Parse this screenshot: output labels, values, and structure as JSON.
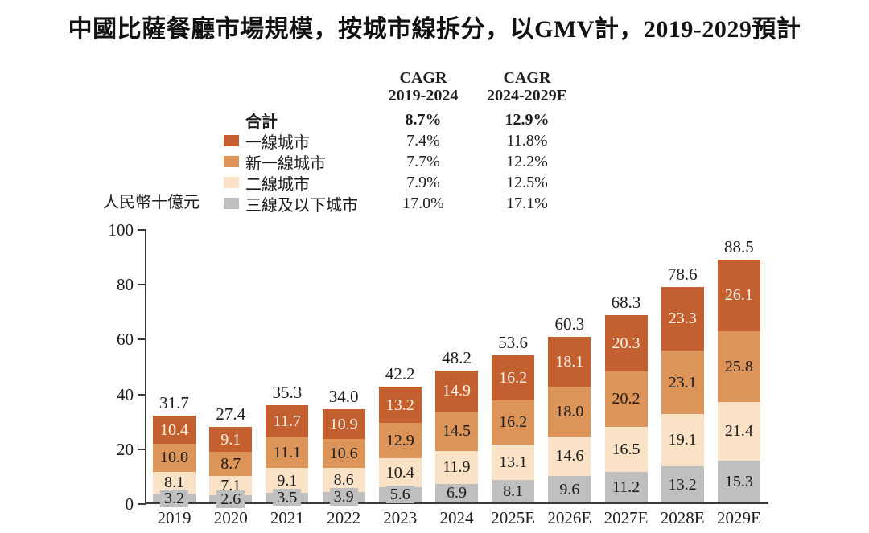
{
  "legend": {
    "columns": [
      {
        "line1": "CAGR",
        "line2": "2019-2024"
      },
      {
        "line1": "CAGR",
        "line2": "2024-2029E"
      }
    ],
    "rows": [
      {
        "label": "合計",
        "values": [
          "8.7%",
          "12.9%"
        ],
        "bold": true,
        "color": null
      },
      {
        "label": "一線城市",
        "values": [
          "7.4%",
          "11.8%"
        ],
        "bold": false,
        "color": "#C4602F"
      },
      {
        "label": "新一線城市",
        "values": [
          "7.7%",
          "12.2%"
        ],
        "bold": false,
        "color": "#DD9458"
      },
      {
        "label": "二線城市",
        "values": [
          "7.9%",
          "12.5%"
        ],
        "bold": false,
        "color": "#F9E2C6"
      },
      {
        "label": "三線及以下城市",
        "values": [
          "17.0%",
          "17.1%"
        ],
        "bold": false,
        "color": "#BFBFBF"
      }
    ]
  },
  "chart_data": {
    "type": "stacked-bar",
    "title": "中國比薩餐廳市場規模，按城市線拆分，以GMV計，2019-2029預計",
    "unit_label": "人民幣十億元",
    "categories": [
      "2019",
      "2020",
      "2021",
      "2022",
      "2023",
      "2024",
      "2025E",
      "2026E",
      "2027E",
      "2028E",
      "2029E"
    ],
    "series": [
      {
        "name": "三線及以下城市",
        "color": "#BFBFBF",
        "values": [
          3.2,
          2.6,
          3.5,
          3.9,
          5.6,
          6.9,
          8.1,
          9.6,
          11.2,
          13.2,
          15.3
        ]
      },
      {
        "name": "二線城市",
        "color": "#F9E2C6",
        "values": [
          8.1,
          7.1,
          9.1,
          8.6,
          10.4,
          11.9,
          13.1,
          14.6,
          16.5,
          19.1,
          21.4
        ]
      },
      {
        "name": "新一線城市",
        "color": "#DD9458",
        "values": [
          10.0,
          8.7,
          11.1,
          10.6,
          12.9,
          14.5,
          16.2,
          18.0,
          20.2,
          23.1,
          25.8
        ]
      },
      {
        "name": "一線城市",
        "color": "#C4602F",
        "values": [
          10.4,
          9.1,
          11.7,
          10.9,
          13.2,
          14.9,
          16.2,
          18.1,
          20.3,
          23.3,
          26.1
        ]
      }
    ],
    "totals": [
      31.7,
      27.4,
      35.3,
      34.0,
      42.2,
      48.2,
      53.6,
      60.3,
      68.3,
      78.6,
      88.5
    ],
    "y_ticks": [
      0,
      20,
      40,
      60,
      80,
      100
    ],
    "ylim": [
      0,
      100
    ],
    "legend_position": "top",
    "grid": false,
    "colors": {
      "axis": "#3A3A3A",
      "label_dark": "#1C1C1C",
      "label_light": "#FAF3E8"
    }
  }
}
